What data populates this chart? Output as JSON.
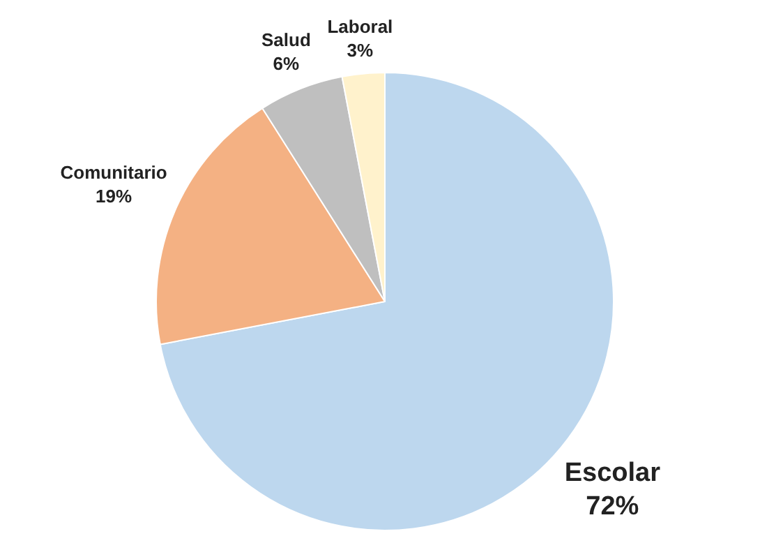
{
  "chart_data": {
    "type": "pie",
    "categories": [
      "Escolar",
      "Comunitario",
      "Salud",
      "Laboral"
    ],
    "values": [
      72,
      19,
      6,
      3
    ],
    "value_labels": [
      "72%",
      "19%",
      "6%",
      "3%"
    ],
    "colors": [
      "#bdd7ee",
      "#f4b183",
      "#bfbfbf",
      "#fff2cc"
    ],
    "legend": false
  }
}
